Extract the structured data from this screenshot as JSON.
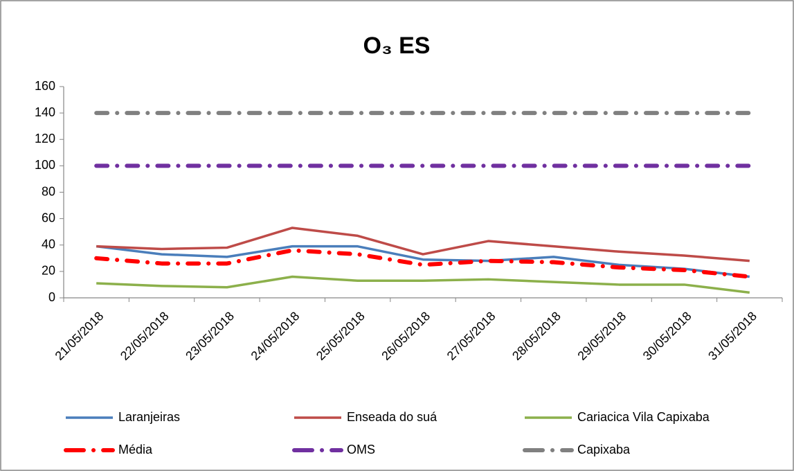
{
  "chart_data": {
    "type": "line",
    "title": "O₃ ES",
    "categories": [
      "21/05/2018",
      "22/05/2018",
      "23/05/2018",
      "24/05/2018",
      "25/05/2018",
      "26/05/2018",
      "27/05/2018",
      "28/05/2018",
      "29/05/2018",
      "30/05/2018",
      "31/05/2018"
    ],
    "series": [
      {
        "name": "Laranjeiras",
        "color": "#4a7ebb",
        "style": "solid",
        "values": [
          39,
          33,
          31,
          39,
          39,
          29,
          28,
          31,
          25,
          22,
          16
        ]
      },
      {
        "name": "Enseada do suá",
        "color": "#be4b48",
        "style": "solid",
        "values": [
          39,
          37,
          38,
          53,
          47,
          33,
          43,
          39,
          35,
          32,
          28
        ]
      },
      {
        "name": "Cariacica Vila Capixaba",
        "color": "#8cb04b",
        "style": "solid",
        "values": [
          11,
          9,
          8,
          16,
          13,
          13,
          14,
          12,
          10,
          10,
          4
        ]
      },
      {
        "name": "Média",
        "color": "#ff0000",
        "style": "dash-dot",
        "values": [
          30,
          26,
          26,
          36,
          33,
          25,
          28,
          27,
          23,
          21,
          16
        ]
      },
      {
        "name": "OMS",
        "color": "#7030a0",
        "style": "dash-dot",
        "values": [
          100,
          100,
          100,
          100,
          100,
          100,
          100,
          100,
          100,
          100,
          100
        ]
      },
      {
        "name": "Capixaba",
        "color": "#808080",
        "style": "dash-dot",
        "values": [
          140,
          140,
          140,
          140,
          140,
          140,
          140,
          140,
          140,
          140,
          140
        ]
      }
    ],
    "ylim": [
      0,
      160
    ],
    "yticks": [
      0,
      20,
      40,
      60,
      80,
      100,
      120,
      140,
      160
    ],
    "grid": false
  }
}
